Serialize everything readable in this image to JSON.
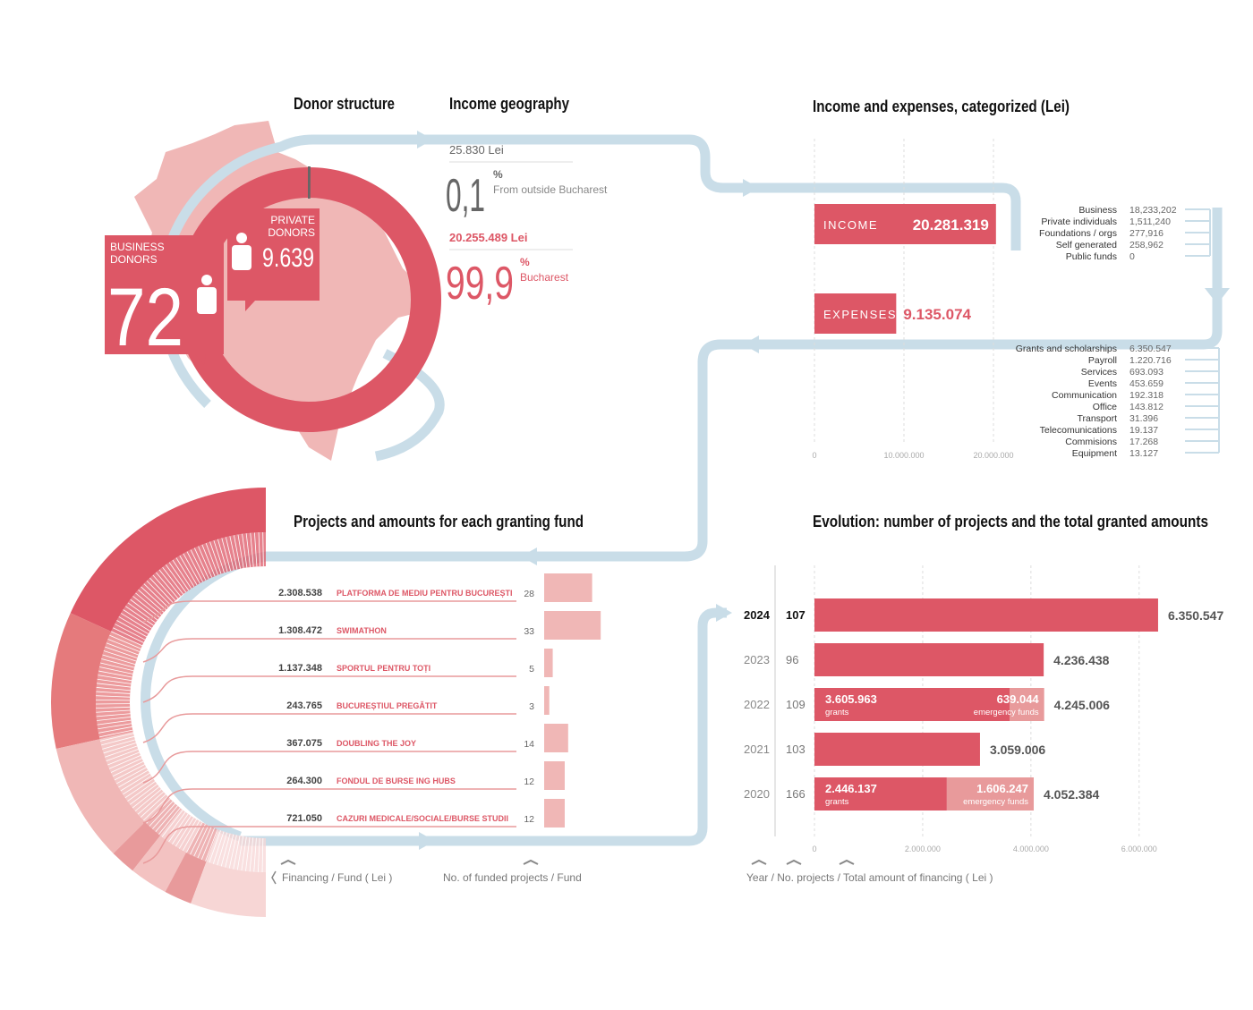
{
  "donor_structure": {
    "title": "Donor structure",
    "business": {
      "label": [
        "BUSINESS",
        "DONORS"
      ],
      "value": 72
    },
    "private": {
      "label": [
        "PRIVATE",
        "DONORS"
      ],
      "value": 9639,
      "value_label": "9.639"
    }
  },
  "chart_data": [
    {
      "type": "donut",
      "title": "Income geography",
      "categories": [
        "From outside Bucharest",
        "Bucharest"
      ],
      "values": [
        0.1,
        99.9
      ],
      "value_labels": [
        "0,1",
        "99,9"
      ],
      "unit": "%",
      "amounts": [
        25830,
        20255489
      ],
      "amount_labels": [
        "25.830 Lei",
        "20.255.489 Lei"
      ],
      "colors": [
        "#666666",
        "#dd5766"
      ]
    },
    {
      "type": "hbar",
      "title": "Income and expenses, categorized (Lei)",
      "categories": [
        "INCOME",
        "EXPENSES"
      ],
      "values": [
        20281319,
        9135074
      ],
      "value_labels": [
        "20.281.319",
        "9.135.074"
      ],
      "color": "#dd5766",
      "xlim": [
        0,
        25000000
      ],
      "xticks": [
        0,
        {
          "value": 10000000,
          "label": "10.000.000"
        },
        {
          "value": 20000000,
          "label": "20.000.000"
        }
      ],
      "grid": true,
      "income_breakdown": {
        "categories": [
          "Business",
          "Private individuals",
          "Foundations / orgs",
          "Self generated",
          "Public funds"
        ],
        "values": [
          18233202,
          1511240,
          277916,
          258962,
          0
        ],
        "value_labels": [
          "18,233,202",
          "1,511,240",
          "277,916",
          "258,962",
          "0"
        ]
      },
      "expense_breakdown": {
        "categories": [
          "Grants and scholarships",
          "Payroll",
          "Services",
          "Events",
          "Communication",
          "Office",
          "Transport",
          "Telecomunications",
          "Commisions",
          "Equipment"
        ],
        "values": [
          6350547,
          1220716,
          693093,
          453659,
          192318,
          143812,
          31396,
          19137,
          17268,
          13127
        ],
        "value_labels": [
          "6.350.547",
          "1.220.716",
          "693.093",
          "453.659",
          "192.318",
          "143.812",
          "31.396",
          "19.137",
          "17.268",
          "13.127"
        ]
      }
    },
    {
      "type": "fund",
      "title": "Projects and amounts for each granting fund",
      "categories": [
        "PLATFORMA DE MEDIU PENTRU BUCUREȘTI",
        "SWIMATHON",
        "SPORTUL PENTRU TOȚI",
        "BUCUREȘTIUL PREGĂTIT",
        "DOUBLING THE JOY",
        "FONDUL DE BURSE ING HUBS",
        "CAZURI MEDICALE/SOCIALE/BURSE STUDII"
      ],
      "amounts": [
        2308538,
        1308472,
        1137348,
        243765,
        367075,
        264300,
        721050
      ],
      "amount_labels": [
        "2.308.538",
        "1.308.472",
        "1.137.348",
        "243.765",
        "367.075",
        "264.300",
        "721.050"
      ],
      "projects": [
        28,
        33,
        5,
        3,
        14,
        12,
        12
      ],
      "xlim": [
        0,
        35
      ],
      "colors": [
        "#dd5766",
        "#e57a7c",
        "#f0b7b6",
        "#e89a9b",
        "#f3c2c1",
        "#e89a9b",
        "#f7d6d5"
      ],
      "bar_color": "#f0b7b6",
      "axis_labels": [
        "Financing / Fund ( Lei )",
        "No. of funded projects / Fund"
      ]
    },
    {
      "type": "stacked_hbar",
      "title": "Evolution: number of projects and the total granted amounts",
      "categories": [
        "2024",
        "2023",
        "2022",
        "2021",
        "2020"
      ],
      "projects": [
        107,
        96,
        109,
        103,
        166
      ],
      "series": [
        {
          "name": "grants",
          "color": "#dd5766",
          "values": [
            6350547,
            4236438,
            3605963,
            3059006,
            2446137
          ],
          "value_labels": [
            null,
            null,
            "3.605.963",
            null,
            "2.446.137"
          ]
        },
        {
          "name": "emergency funds",
          "color": "#e89a9b",
          "values": [
            null,
            null,
            639044,
            null,
            1606247
          ],
          "value_labels": [
            null,
            null,
            "639.044",
            null,
            "1.606.247"
          ]
        }
      ],
      "totals": [
        6350547,
        4236438,
        4245006,
        3059006,
        4052384
      ],
      "total_labels": [
        "6.350.547",
        "4.236.438",
        "4.245.006",
        "3.059.006",
        "4.052.384"
      ],
      "xlim": [
        0,
        6500000
      ],
      "xticks": [
        0,
        {
          "value": 2000000,
          "label": "2.000.000"
        },
        {
          "value": 4000000,
          "label": "4.000.000"
        },
        {
          "value": 6000000,
          "label": "6.000.000"
        }
      ],
      "grid": true,
      "axis_label": "Year / No. projects / Total amount of financing ( Lei )"
    }
  ]
}
